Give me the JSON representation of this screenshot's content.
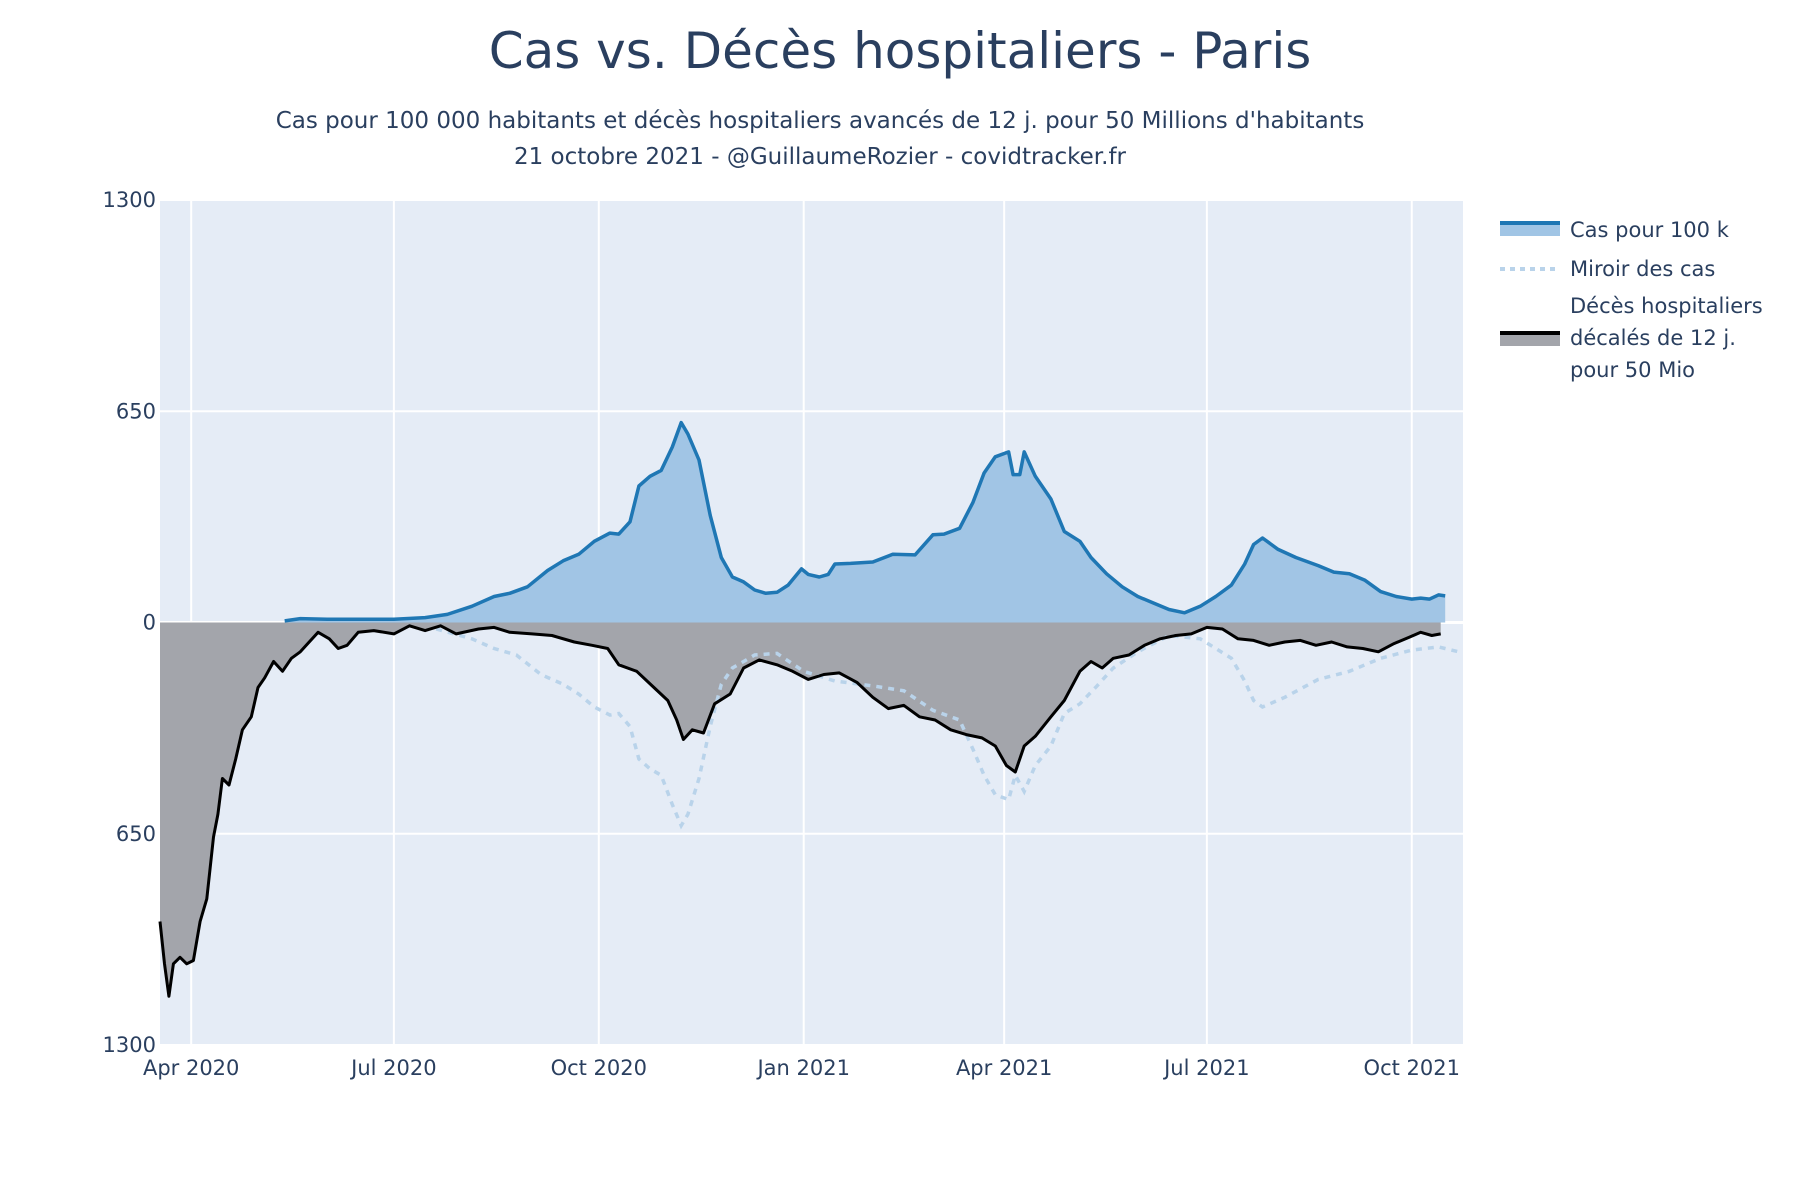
{
  "title": "Cas vs. Décès hospitaliers - Paris",
  "subtitle_line1": "Cas pour 100 000 habitants et décès hospitaliers avancés de 12 j. pour 50 Millions d'habitants",
  "subtitle_line2": "21 octobre 2021 - @GuillaumeRozier - covidtracker.fr",
  "colors": {
    "cases_line": "#1f77b4",
    "cases_fill": "#a1c5e5",
    "mirror": "#b9d3ea",
    "deaths_line": "#000000",
    "deaths_fill": "#a3a5ab",
    "plot_bg": "#e5ecf6",
    "grid": "#ffffff"
  },
  "legend": {
    "cases": "Cas pour 100 k",
    "mirror": "Miroir des cas",
    "deaths_l1": "Décès hospitaliers",
    "deaths_l2": "décalés de 12 j.",
    "deaths_l3": "pour 50 Mio"
  },
  "chart_data": {
    "type": "area",
    "x_range": [
      "2020-03-18",
      "2021-10-24"
    ],
    "ylim": [
      -1300,
      1300
    ],
    "y_ticks": [
      {
        "value": 1300,
        "label": "1300"
      },
      {
        "value": 650,
        "label": "650"
      },
      {
        "value": 0,
        "label": "0"
      },
      {
        "value": -650,
        "label": "650"
      },
      {
        "value": -1300,
        "label": "1300"
      }
    ],
    "x_ticks": [
      {
        "date": "2020-04-01",
        "label": "Apr 2020"
      },
      {
        "date": "2020-07-01",
        "label": "Jul 2020"
      },
      {
        "date": "2020-10-01",
        "label": "Oct 2020"
      },
      {
        "date": "2021-01-01",
        "label": "Jan 2021"
      },
      {
        "date": "2021-04-01",
        "label": "Apr 2021"
      },
      {
        "date": "2021-07-01",
        "label": "Jul 2021"
      },
      {
        "date": "2021-10-01",
        "label": "Oct 2021"
      }
    ],
    "grid": true,
    "legend_position": "right",
    "series": [
      {
        "name": "Cas pour 100 k",
        "points": [
          [
            "2020-05-13",
            5
          ],
          [
            "2020-05-20",
            12
          ],
          [
            "2020-06-01",
            10
          ],
          [
            "2020-06-15",
            10
          ],
          [
            "2020-07-01",
            10
          ],
          [
            "2020-07-15",
            15
          ],
          [
            "2020-07-25",
            25
          ],
          [
            "2020-08-05",
            50
          ],
          [
            "2020-08-15",
            80
          ],
          [
            "2020-08-22",
            90
          ],
          [
            "2020-08-30",
            110
          ],
          [
            "2020-09-08",
            160
          ],
          [
            "2020-09-15",
            190
          ],
          [
            "2020-09-22",
            210
          ],
          [
            "2020-09-29",
            250
          ],
          [
            "2020-10-06",
            275
          ],
          [
            "2020-10-10",
            272
          ],
          [
            "2020-10-15",
            310
          ],
          [
            "2020-10-19",
            420
          ],
          [
            "2020-10-24",
            450
          ],
          [
            "2020-10-29",
            468
          ],
          [
            "2020-11-03",
            540
          ],
          [
            "2020-11-07",
            615
          ],
          [
            "2020-11-10",
            580
          ],
          [
            "2020-11-15",
            500
          ],
          [
            "2020-11-20",
            330
          ],
          [
            "2020-11-25",
            200
          ],
          [
            "2020-11-30",
            140
          ],
          [
            "2020-12-05",
            125
          ],
          [
            "2020-12-10",
            100
          ],
          [
            "2020-12-15",
            90
          ],
          [
            "2020-12-20",
            93
          ],
          [
            "2020-12-25",
            115
          ],
          [
            "2020-12-31",
            165
          ],
          [
            "2021-01-03",
            148
          ],
          [
            "2021-01-08",
            140
          ],
          [
            "2021-01-12",
            148
          ],
          [
            "2021-01-15",
            180
          ],
          [
            "2021-01-22",
            182
          ],
          [
            "2021-02-01",
            186
          ],
          [
            "2021-02-10",
            210
          ],
          [
            "2021-02-20",
            208
          ],
          [
            "2021-02-28",
            270
          ],
          [
            "2021-03-05",
            272
          ],
          [
            "2021-03-12",
            290
          ],
          [
            "2021-03-18",
            370
          ],
          [
            "2021-03-23",
            460
          ],
          [
            "2021-03-28",
            510
          ],
          [
            "2021-04-03",
            525
          ],
          [
            "2021-04-05",
            455
          ],
          [
            "2021-04-08",
            455
          ],
          [
            "2021-04-10",
            525
          ],
          [
            "2021-04-15",
            450
          ],
          [
            "2021-04-22",
            380
          ],
          [
            "2021-04-28",
            280
          ],
          [
            "2021-05-05",
            250
          ],
          [
            "2021-05-10",
            200
          ],
          [
            "2021-05-17",
            150
          ],
          [
            "2021-05-24",
            110
          ],
          [
            "2021-05-31",
            80
          ],
          [
            "2021-06-07",
            60
          ],
          [
            "2021-06-14",
            40
          ],
          [
            "2021-06-21",
            30
          ],
          [
            "2021-06-28",
            50
          ],
          [
            "2021-07-05",
            80
          ],
          [
            "2021-07-12",
            115
          ],
          [
            "2021-07-18",
            180
          ],
          [
            "2021-07-22",
            240
          ],
          [
            "2021-07-26",
            260
          ],
          [
            "2021-08-02",
            225
          ],
          [
            "2021-08-10",
            200
          ],
          [
            "2021-08-20",
            175
          ],
          [
            "2021-08-27",
            155
          ],
          [
            "2021-09-03",
            150
          ],
          [
            "2021-09-10",
            130
          ],
          [
            "2021-09-17",
            95
          ],
          [
            "2021-09-24",
            80
          ],
          [
            "2021-10-01",
            72
          ],
          [
            "2021-10-05",
            75
          ],
          [
            "2021-10-09",
            72
          ],
          [
            "2021-10-13",
            85
          ],
          [
            "2021-10-16",
            82
          ]
        ]
      },
      {
        "name": "Miroir des cas",
        "points": [
          [
            "2020-07-20",
            -20
          ],
          [
            "2020-08-05",
            -50
          ],
          [
            "2020-08-15",
            -80
          ],
          [
            "2020-08-25",
            -100
          ],
          [
            "2020-09-05",
            -160
          ],
          [
            "2020-09-15",
            -190
          ],
          [
            "2020-09-22",
            -220
          ],
          [
            "2020-09-29",
            -260
          ],
          [
            "2020-10-06",
            -285
          ],
          [
            "2020-10-10",
            -280
          ],
          [
            "2020-10-15",
            -320
          ],
          [
            "2020-10-19",
            -420
          ],
          [
            "2020-10-24",
            -450
          ],
          [
            "2020-10-29",
            -470
          ],
          [
            "2020-11-03",
            -560
          ],
          [
            "2020-11-07",
            -625
          ],
          [
            "2020-11-10",
            -590
          ],
          [
            "2020-11-15",
            -480
          ],
          [
            "2020-11-20",
            -320
          ],
          [
            "2020-11-25",
            -190
          ],
          [
            "2020-11-30",
            -140
          ],
          [
            "2020-12-05",
            -120
          ],
          [
            "2020-12-10",
            -100
          ],
          [
            "2020-12-20",
            -95
          ],
          [
            "2021-01-01",
            -150
          ],
          [
            "2021-01-15",
            -180
          ],
          [
            "2021-02-01",
            -195
          ],
          [
            "2021-02-15",
            -210
          ],
          [
            "2021-02-28",
            -270
          ],
          [
            "2021-03-12",
            -300
          ],
          [
            "2021-03-18",
            -390
          ],
          [
            "2021-03-23",
            -470
          ],
          [
            "2021-03-28",
            -530
          ],
          [
            "2021-04-03",
            -545
          ],
          [
            "2021-04-06",
            -470
          ],
          [
            "2021-04-10",
            -520
          ],
          [
            "2021-04-15",
            -440
          ],
          [
            "2021-04-22",
            -380
          ],
          [
            "2021-04-28",
            -280
          ],
          [
            "2021-05-05",
            -250
          ],
          [
            "2021-05-12",
            -200
          ],
          [
            "2021-05-20",
            -140
          ],
          [
            "2021-05-31",
            -90
          ],
          [
            "2021-06-14",
            -40
          ],
          [
            "2021-06-28",
            -50
          ],
          [
            "2021-07-05",
            -80
          ],
          [
            "2021-07-12",
            -110
          ],
          [
            "2021-07-18",
            -180
          ],
          [
            "2021-07-22",
            -240
          ],
          [
            "2021-07-26",
            -260
          ],
          [
            "2021-08-05",
            -230
          ],
          [
            "2021-08-20",
            -175
          ],
          [
            "2021-09-03",
            -150
          ],
          [
            "2021-09-17",
            -110
          ],
          [
            "2021-10-01",
            -85
          ],
          [
            "2021-10-13",
            -75
          ],
          [
            "2021-10-22",
            -90
          ]
        ]
      },
      {
        "name": "Décès hospitaliers décalés de 12 j. pour 50 Mio",
        "points": [
          [
            "2020-03-18",
            -920
          ],
          [
            "2020-03-20",
            -1050
          ],
          [
            "2020-03-22",
            -1150
          ],
          [
            "2020-03-24",
            -1050
          ],
          [
            "2020-03-27",
            -1030
          ],
          [
            "2020-03-30",
            -1050
          ],
          [
            "2020-04-02",
            -1040
          ],
          [
            "2020-04-05",
            -920
          ],
          [
            "2020-04-08",
            -850
          ],
          [
            "2020-04-11",
            -660
          ],
          [
            "2020-04-13",
            -590
          ],
          [
            "2020-04-15",
            -480
          ],
          [
            "2020-04-18",
            -500
          ],
          [
            "2020-04-21",
            -420
          ],
          [
            "2020-04-24",
            -330
          ],
          [
            "2020-04-28",
            -290
          ],
          [
            "2020-05-01",
            -200
          ],
          [
            "2020-05-04",
            -170
          ],
          [
            "2020-05-08",
            -120
          ],
          [
            "2020-05-12",
            -150
          ],
          [
            "2020-05-16",
            -110
          ],
          [
            "2020-05-20",
            -90
          ],
          [
            "2020-05-24",
            -60
          ],
          [
            "2020-05-28",
            -30
          ],
          [
            "2020-06-02",
            -50
          ],
          [
            "2020-06-06",
            -80
          ],
          [
            "2020-06-10",
            -70
          ],
          [
            "2020-06-15",
            -30
          ],
          [
            "2020-06-22",
            -25
          ],
          [
            "2020-07-01",
            -35
          ],
          [
            "2020-07-08",
            -10
          ],
          [
            "2020-07-15",
            -25
          ],
          [
            "2020-07-22",
            -10
          ],
          [
            "2020-07-29",
            -35
          ],
          [
            "2020-08-08",
            -20
          ],
          [
            "2020-08-15",
            -15
          ],
          [
            "2020-08-22",
            -30
          ],
          [
            "2020-09-01",
            -35
          ],
          [
            "2020-09-10",
            -40
          ],
          [
            "2020-09-20",
            -60
          ],
          [
            "2020-09-28",
            -70
          ],
          [
            "2020-10-05",
            -80
          ],
          [
            "2020-10-10",
            -130
          ],
          [
            "2020-10-18",
            -150
          ],
          [
            "2020-10-25",
            -195
          ],
          [
            "2020-11-01",
            -240
          ],
          [
            "2020-11-05",
            -300
          ],
          [
            "2020-11-08",
            -360
          ],
          [
            "2020-11-12",
            -330
          ],
          [
            "2020-11-17",
            -340
          ],
          [
            "2020-11-22",
            -250
          ],
          [
            "2020-11-29",
            -220
          ],
          [
            "2020-12-05",
            -140
          ],
          [
            "2020-12-12",
            -115
          ],
          [
            "2020-12-20",
            -130
          ],
          [
            "2020-12-27",
            -150
          ],
          [
            "2021-01-03",
            -175
          ],
          [
            "2021-01-10",
            -160
          ],
          [
            "2021-01-17",
            -155
          ],
          [
            "2021-01-25",
            -185
          ],
          [
            "2021-02-01",
            -230
          ],
          [
            "2021-02-08",
            -265
          ],
          [
            "2021-02-15",
            -255
          ],
          [
            "2021-02-22",
            -290
          ],
          [
            "2021-03-01",
            -300
          ],
          [
            "2021-03-08",
            -330
          ],
          [
            "2021-03-15",
            -345
          ],
          [
            "2021-03-22",
            -355
          ],
          [
            "2021-03-28",
            -380
          ],
          [
            "2021-04-02",
            -440
          ],
          [
            "2021-04-06",
            -460
          ],
          [
            "2021-04-10",
            -380
          ],
          [
            "2021-04-15",
            -350
          ],
          [
            "2021-04-22",
            -290
          ],
          [
            "2021-04-28",
            -240
          ],
          [
            "2021-05-05",
            -150
          ],
          [
            "2021-05-10",
            -120
          ],
          [
            "2021-05-15",
            -140
          ],
          [
            "2021-05-20",
            -110
          ],
          [
            "2021-05-27",
            -100
          ],
          [
            "2021-06-03",
            -70
          ],
          [
            "2021-06-10",
            -50
          ],
          [
            "2021-06-17",
            -40
          ],
          [
            "2021-06-24",
            -35
          ],
          [
            "2021-07-01",
            -15
          ],
          [
            "2021-07-08",
            -20
          ],
          [
            "2021-07-15",
            -50
          ],
          [
            "2021-07-22",
            -55
          ],
          [
            "2021-07-29",
            -70
          ],
          [
            "2021-08-05",
            -60
          ],
          [
            "2021-08-12",
            -55
          ],
          [
            "2021-08-19",
            -70
          ],
          [
            "2021-08-26",
            -60
          ],
          [
            "2021-09-02",
            -75
          ],
          [
            "2021-09-09",
            -80
          ],
          [
            "2021-09-16",
            -90
          ],
          [
            "2021-09-23",
            -65
          ],
          [
            "2021-09-30",
            -45
          ],
          [
            "2021-10-05",
            -30
          ],
          [
            "2021-10-10",
            -40
          ],
          [
            "2021-10-14",
            -35
          ]
        ]
      }
    ]
  }
}
